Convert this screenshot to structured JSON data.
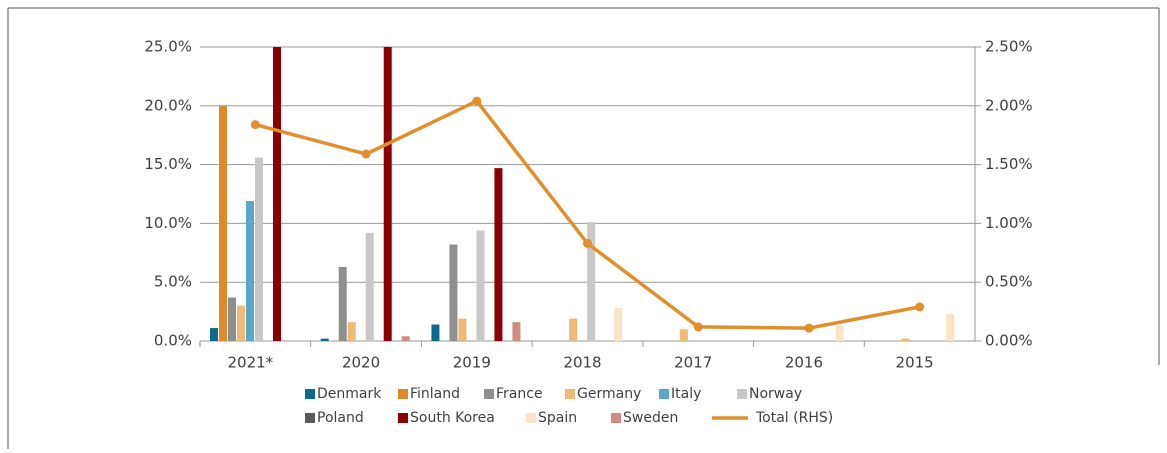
{
  "chart_data": {
    "type": "bar",
    "categories": [
      "2021*",
      "2020",
      "2019",
      "2018",
      "2017",
      "2016",
      "2015"
    ],
    "series": [
      {
        "name": "Denmark",
        "color": "#0e6a8c",
        "values": [
          1.1,
          0.2,
          1.4,
          0,
          0,
          0,
          0
        ]
      },
      {
        "name": "Finland",
        "color": "#e0892b",
        "values": [
          20.0,
          0,
          0,
          0,
          0,
          0,
          0
        ]
      },
      {
        "name": "France",
        "color": "#8f8f8f",
        "values": [
          3.7,
          6.3,
          8.2,
          0,
          0,
          0,
          0
        ]
      },
      {
        "name": "Germany",
        "color": "#f0b978",
        "values": [
          3.0,
          1.6,
          1.9,
          1.9,
          1.0,
          0,
          0.2
        ]
      },
      {
        "name": "Italy",
        "color": "#5aa7c7",
        "values": [
          11.9,
          0,
          0,
          0,
          0,
          0,
          0
        ]
      },
      {
        "name": "Norway",
        "color": "#c8c8c8",
        "values": [
          15.6,
          9.2,
          9.4,
          10.1,
          0,
          0,
          0
        ]
      },
      {
        "name": "Poland",
        "color": "#595959",
        "values": [
          0,
          0,
          0,
          0,
          0,
          0,
          0
        ]
      },
      {
        "name": "South Korea",
        "color": "#8b0000",
        "values": [
          25,
          25,
          14.7,
          0,
          0,
          0,
          0
        ]
      },
      {
        "name": "Spain",
        "color": "#fbe3c6",
        "values": [
          0,
          0,
          0,
          2.8,
          0,
          1.3,
          2.3
        ]
      },
      {
        "name": "Sweden",
        "color": "#d08a7f",
        "values": [
          0,
          0.4,
          1.6,
          0,
          0,
          0,
          0
        ]
      },
      {
        "name": "Total (RHS)",
        "color": "#e0902b",
        "axis": "y2",
        "type": "line",
        "values": [
          1.84,
          1.59,
          2.04,
          0.83,
          0.12,
          0.11,
          0.29
        ]
      }
    ],
    "ylim": [
      0,
      25
    ],
    "yticks": [
      {
        "value": 0,
        "label": "0.0%"
      },
      {
        "value": 5,
        "label": "5.0%"
      },
      {
        "value": 10,
        "label": "10.0%"
      },
      {
        "value": 15,
        "label": "15.0%"
      },
      {
        "value": 20,
        "label": "20.0%"
      },
      {
        "value": 25,
        "label": "25.0%"
      }
    ],
    "y2lim": [
      0,
      2.5
    ],
    "y2ticks": [
      {
        "value": 0,
        "label": "0.00%"
      },
      {
        "value": 0.5,
        "label": "0.50%"
      },
      {
        "value": 1,
        "label": "1.00%"
      },
      {
        "value": 1.5,
        "label": "1.50%"
      },
      {
        "value": 2,
        "label": "2.00%"
      },
      {
        "value": 2.5,
        "label": "2.50%"
      }
    ],
    "grid": true,
    "legend": "bottom"
  }
}
